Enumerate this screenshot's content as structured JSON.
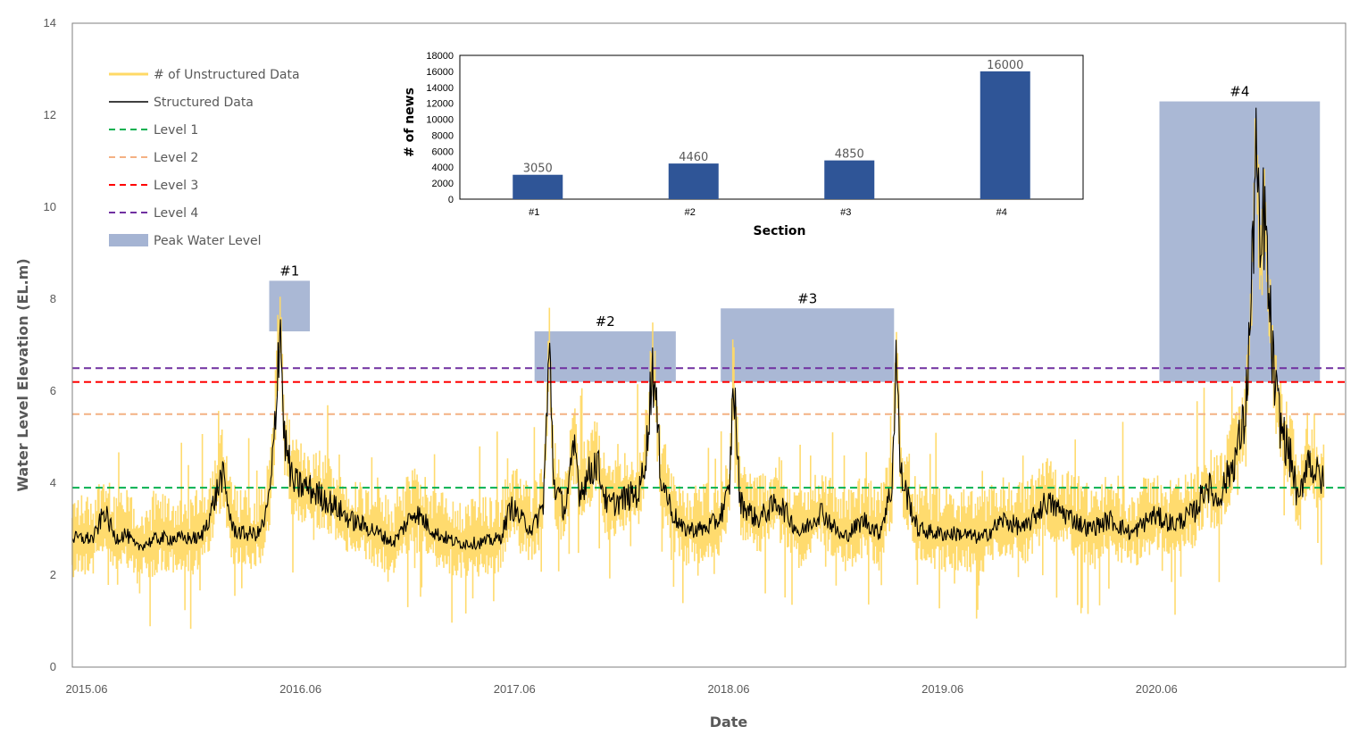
{
  "chart_data": [
    {
      "type": "line",
      "title": "",
      "xlabel": "Date",
      "ylabel": "Water Level Elevation (EL.m)",
      "ylim": [
        0,
        14
      ],
      "yticks": [
        "0",
        "2",
        "4",
        "6",
        "8",
        "10",
        "12",
        "14"
      ],
      "xlim": [
        2015.35,
        2021.3
      ],
      "xticks": [
        {
          "label": "2015.06",
          "x": 2015.5
        },
        {
          "label": "2016.06",
          "x": 2016.5
        },
        {
          "label": "2017.06",
          "x": 2017.5
        },
        {
          "label": "2018.06",
          "x": 2018.5
        },
        {
          "label": "2019.06",
          "x": 2019.5
        },
        {
          "label": "2020.06",
          "x": 2020.5
        }
      ],
      "legend": {
        "position": "top-left",
        "entries": [
          {
            "label": "# of Unstructured Data",
            "color": "#FFD966",
            "style": "solid"
          },
          {
            "label": "Structured Data",
            "color": "#000000",
            "style": "solid"
          },
          {
            "label": "Level 1",
            "color": "#00B050",
            "style": "dashed"
          },
          {
            "label": "Level 2",
            "color": "#F4B183",
            "style": "dashed"
          },
          {
            "label": "Level 3",
            "color": "#FF0000",
            "style": "dashed"
          },
          {
            "label": "Level 4",
            "color": "#7030A0",
            "style": "dashed"
          },
          {
            "label": "Peak Water Level",
            "color": "#A5B4D3",
            "style": "box"
          }
        ]
      },
      "levels": [
        {
          "name": "Level 1",
          "value": 3.9,
          "color": "#00B050"
        },
        {
          "name": "Level 2",
          "value": 5.5,
          "color": "#F4B183"
        },
        {
          "name": "Level 3",
          "value": 6.2,
          "color": "#FF0000"
        },
        {
          "name": "Level 4",
          "value": 6.5,
          "color": "#7030A0"
        }
      ],
      "peak_sections": [
        {
          "label": "#1",
          "x0": 2016.27,
          "x1": 2016.46,
          "y0": 7.3,
          "y1": 8.4
        },
        {
          "label": "#2",
          "x0": 2017.51,
          "x1": 2018.17,
          "y0": 6.2,
          "y1": 7.3
        },
        {
          "label": "#3",
          "x0": 2018.38,
          "x1": 2019.19,
          "y0": 6.2,
          "y1": 7.8
        },
        {
          "label": "#4",
          "x0": 2020.43,
          "x1": 2021.18,
          "y0": 6.2,
          "y1": 12.3
        }
      ],
      "series": [
        {
          "name": "Structured Data",
          "color": "#000000",
          "points": [
            [
              2015.35,
              2.8
            ],
            [
              2015.45,
              2.8
            ],
            [
              2015.5,
              3.4
            ],
            [
              2015.55,
              2.8
            ],
            [
              2015.6,
              2.9
            ],
            [
              2015.65,
              2.6
            ],
            [
              2015.75,
              2.8
            ],
            [
              2015.85,
              2.8
            ],
            [
              2015.95,
              2.8
            ],
            [
              2016.0,
              3.4
            ],
            [
              2016.05,
              4.2
            ],
            [
              2016.1,
              3.0
            ],
            [
              2016.15,
              2.9
            ],
            [
              2016.22,
              2.9
            ],
            [
              2016.25,
              3.2
            ],
            [
              2016.28,
              4.0
            ],
            [
              2016.3,
              5.6
            ],
            [
              2016.32,
              7.7
            ],
            [
              2016.34,
              5.0
            ],
            [
              2016.38,
              4.0
            ],
            [
              2016.45,
              3.9
            ],
            [
              2016.55,
              3.6
            ],
            [
              2016.65,
              3.2
            ],
            [
              2016.75,
              3.0
            ],
            [
              2016.85,
              2.7
            ],
            [
              2016.95,
              3.4
            ],
            [
              2017.05,
              2.9
            ],
            [
              2017.15,
              2.7
            ],
            [
              2017.25,
              2.7
            ],
            [
              2017.35,
              2.8
            ],
            [
              2017.4,
              3.5
            ],
            [
              2017.45,
              3.2
            ],
            [
              2017.5,
              3.0
            ],
            [
              2017.55,
              3.5
            ],
            [
              2017.58,
              6.9
            ],
            [
              2017.6,
              4.0
            ],
            [
              2017.65,
              3.4
            ],
            [
              2017.7,
              4.8
            ],
            [
              2017.72,
              3.8
            ],
            [
              2017.8,
              4.5
            ],
            [
              2017.85,
              3.5
            ],
            [
              2017.95,
              3.7
            ],
            [
              2018.0,
              3.8
            ],
            [
              2018.04,
              5.0
            ],
            [
              2018.06,
              6.7
            ],
            [
              2018.08,
              5.5
            ],
            [
              2018.1,
              4.2
            ],
            [
              2018.15,
              3.4
            ],
            [
              2018.2,
              3.0
            ],
            [
              2018.3,
              3.0
            ],
            [
              2018.37,
              3.2
            ],
            [
              2018.42,
              3.8
            ],
            [
              2018.44,
              6.3
            ],
            [
              2018.47,
              3.6
            ],
            [
              2018.55,
              3.2
            ],
            [
              2018.65,
              3.6
            ],
            [
              2018.75,
              2.9
            ],
            [
              2018.85,
              3.4
            ],
            [
              2018.95,
              2.8
            ],
            [
              2019.05,
              3.2
            ],
            [
              2019.12,
              2.9
            ],
            [
              2019.18,
              3.9
            ],
            [
              2019.2,
              6.9
            ],
            [
              2019.22,
              4.2
            ],
            [
              2019.3,
              3.0
            ],
            [
              2019.4,
              2.9
            ],
            [
              2019.5,
              2.9
            ],
            [
              2019.6,
              2.8
            ],
            [
              2019.7,
              3.2
            ],
            [
              2019.8,
              3.0
            ],
            [
              2019.9,
              3.6
            ],
            [
              2020.0,
              3.3
            ],
            [
              2020.1,
              3.0
            ],
            [
              2020.2,
              3.2
            ],
            [
              2020.3,
              2.9
            ],
            [
              2020.4,
              3.3
            ],
            [
              2020.5,
              3.1
            ],
            [
              2020.6,
              3.4
            ],
            [
              2020.65,
              4.0
            ],
            [
              2020.7,
              3.6
            ],
            [
              2020.78,
              4.5
            ],
            [
              2020.83,
              5.4
            ],
            [
              2020.86,
              8.0
            ],
            [
              2020.88,
              11.5
            ],
            [
              2020.9,
              8.5
            ],
            [
              2020.92,
              10.0
            ],
            [
              2020.94,
              8.0
            ],
            [
              2020.97,
              6.0
            ],
            [
              2021.0,
              5.2
            ],
            [
              2021.05,
              4.4
            ],
            [
              2021.08,
              3.5
            ],
            [
              2021.12,
              4.6
            ],
            [
              2021.15,
              4.3
            ],
            [
              2021.2,
              4.0
            ]
          ]
        }
      ]
    },
    {
      "type": "bar",
      "title": "",
      "xlabel": "Section",
      "ylabel": "# of news",
      "ylim": [
        0,
        18000
      ],
      "yticks": [
        "0",
        "2000",
        "4000",
        "6000",
        "8000",
        "10000",
        "12000",
        "14000",
        "16000",
        "18000"
      ],
      "categories": [
        "#1",
        "#2",
        "#3",
        "#4"
      ],
      "values": [
        3050,
        4460,
        4850,
        16000
      ],
      "value_labels": [
        "3050",
        "4460",
        "4850",
        "16000"
      ],
      "color": "#2F5597"
    }
  ]
}
